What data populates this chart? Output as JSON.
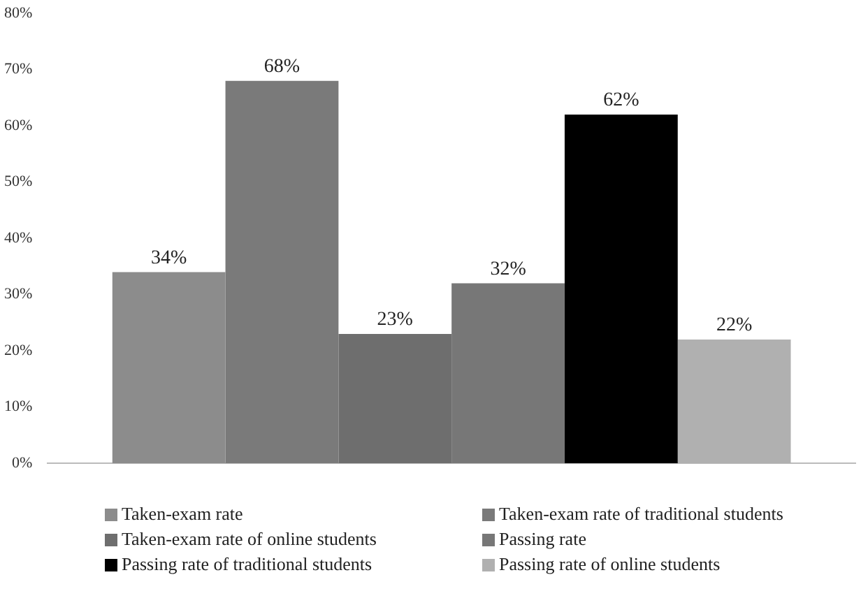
{
  "chart_data": {
    "type": "bar",
    "categories": [
      null
    ],
    "series": [
      {
        "name": "Taken-exam rate",
        "color": "#8c8c8c",
        "values": [
          34
        ],
        "value_labels": [
          "34%"
        ]
      },
      {
        "name": "Taken-exam rate of traditional students",
        "color": "#7a7a7a",
        "values": [
          68
        ],
        "value_labels": [
          "68%"
        ]
      },
      {
        "name": "Taken-exam rate of online students",
        "color": "#6e6e6e",
        "values": [
          23
        ],
        "value_labels": [
          "23%"
        ]
      },
      {
        "name": "Passing rate",
        "color": "#777777",
        "values": [
          32
        ],
        "value_labels": [
          "32%"
        ]
      },
      {
        "name": "Passing rate of traditional students",
        "color": "#000000",
        "values": [
          62
        ],
        "value_labels": [
          "62%"
        ]
      },
      {
        "name": "Passing rate of online students",
        "color": "#b0b0b0",
        "values": [
          22
        ],
        "value_labels": [
          "22%"
        ]
      }
    ],
    "ylim": [
      0,
      80
    ],
    "yticks": [
      {
        "value": 0,
        "label": "0%"
      },
      {
        "value": 10,
        "label": "10%"
      },
      {
        "value": 20,
        "label": "20%"
      },
      {
        "value": 30,
        "label": "30%"
      },
      {
        "value": 40,
        "label": "40%"
      },
      {
        "value": 50,
        "label": "50%"
      },
      {
        "value": 60,
        "label": "60%"
      },
      {
        "value": 70,
        "label": "70%"
      },
      {
        "value": 80,
        "label": "80%"
      }
    ],
    "grid": false,
    "legend": "bottom"
  }
}
